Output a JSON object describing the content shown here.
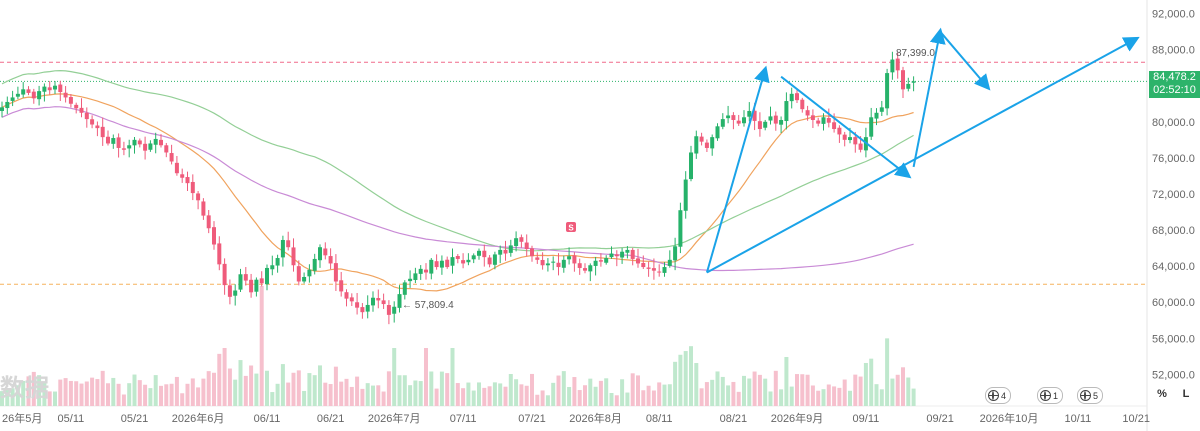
{
  "chart_data": {
    "type": "candlestick",
    "title": "",
    "xlabel": "",
    "ylabel": "",
    "ylim": [
      48500,
      93500
    ],
    "y_ticks": [
      52000,
      56000,
      60000,
      64000,
      68000,
      72000,
      76000,
      80000,
      84000,
      88000,
      92000
    ],
    "y_tick_labels": [
      "52,000.0",
      "56,000.0",
      "60,000.0",
      "64,000.0",
      "68,000.0",
      "72,000.0",
      "76,000.0",
      "80,000.0",
      "84,000.0",
      "88,000.0",
      "92,000.0"
    ],
    "x_tick_labels": [
      "26年5月",
      "05/11",
      "05/21",
      "2026年6月",
      "06/11",
      "06/21",
      "2026年7月",
      "07/11",
      "07/21",
      "2026年8月",
      "08/11",
      "08/21",
      "2026年9月",
      "09/11",
      "09/21",
      "2026年10月",
      "10/11",
      "10/21"
    ],
    "grid": false,
    "legend": "none",
    "closes": [
      81600,
      82200,
      82700,
      83100,
      83600,
      83200,
      82600,
      83400,
      83900,
      83500,
      84000,
      83300,
      82700,
      82000,
      81500,
      81000,
      80300,
      79700,
      79300,
      78300,
      77600,
      78200,
      77100,
      76900,
      77400,
      78000,
      77500,
      76800,
      77600,
      78100,
      77400,
      76600,
      75600,
      74300,
      73800,
      73200,
      72100,
      71300,
      69600,
      68200,
      66400,
      64200,
      61900,
      60600,
      61300,
      63100,
      62400,
      61100,
      62500,
      62100,
      63800,
      64100,
      64900,
      66900,
      66100,
      64100,
      62300,
      62800,
      63600,
      64800,
      66100,
      65200,
      64300,
      62300,
      61200,
      60400,
      60100,
      59400,
      58900,
      59700,
      60500,
      60200,
      59800,
      58600,
      59500,
      60900,
      62200,
      62600,
      63200,
      63700,
      63300,
      64700,
      63900,
      64600,
      63900,
      65000,
      64800,
      64300,
      64700,
      65200,
      65700,
      65000,
      64200,
      65300,
      65800,
      65400,
      66300,
      67100,
      66700,
      65900,
      65100,
      64700,
      64100,
      64300,
      64500,
      63900,
      64700,
      65100,
      64300,
      63800,
      63500,
      64100,
      64600,
      64500,
      64900,
      65400,
      65100,
      65600,
      65800,
      64800,
      64300,
      63900,
      63700,
      63500,
      63300,
      63900,
      64700,
      66200,
      70200,
      73600,
      76600,
      78400,
      77800,
      77100,
      78300,
      79500,
      80300,
      80700,
      80200,
      79800,
      80500,
      81200,
      80100,
      79200,
      80000,
      80600,
      79800,
      80200,
      82300,
      83100,
      82400,
      81400,
      80700,
      80200,
      79800,
      80500,
      79900,
      79200,
      78600,
      78000,
      78300,
      77500,
      76900,
      78300,
      80500,
      81000,
      81600,
      85400,
      86900,
      85700,
      83600,
      84200,
      84478
    ],
    "series": [
      {
        "name": "",
        "role": "short moving average",
        "color": "#f0a35e"
      },
      {
        "name": "",
        "role": "medium moving average",
        "color": "#93cf96"
      },
      {
        "name": "",
        "role": "long moving average",
        "color": "#c98bd6"
      }
    ],
    "reference_lines": [
      {
        "value": 86600,
        "style": "dashed",
        "color": "#f06a8a"
      },
      {
        "value": 84478.2,
        "style": "dotted",
        "color": "#2db36a"
      },
      {
        "value": 62000,
        "style": "dashed",
        "color": "#f5b25d"
      }
    ],
    "annotations": {
      "high_label": "87,399.0",
      "low_label": "← 57,809.4",
      "marker": "S"
    },
    "colors": {
      "up": "#26b26a",
      "down": "#ef5b7b",
      "arrow": "#1aa3e8"
    }
  },
  "last_price": {
    "value": "84,478.2",
    "countdown": "02:52:10"
  },
  "toolbar": {
    "percent_label": "%",
    "log_label": "L"
  },
  "badges": [
    "4",
    "1",
    "5"
  ],
  "watermark": "数据"
}
